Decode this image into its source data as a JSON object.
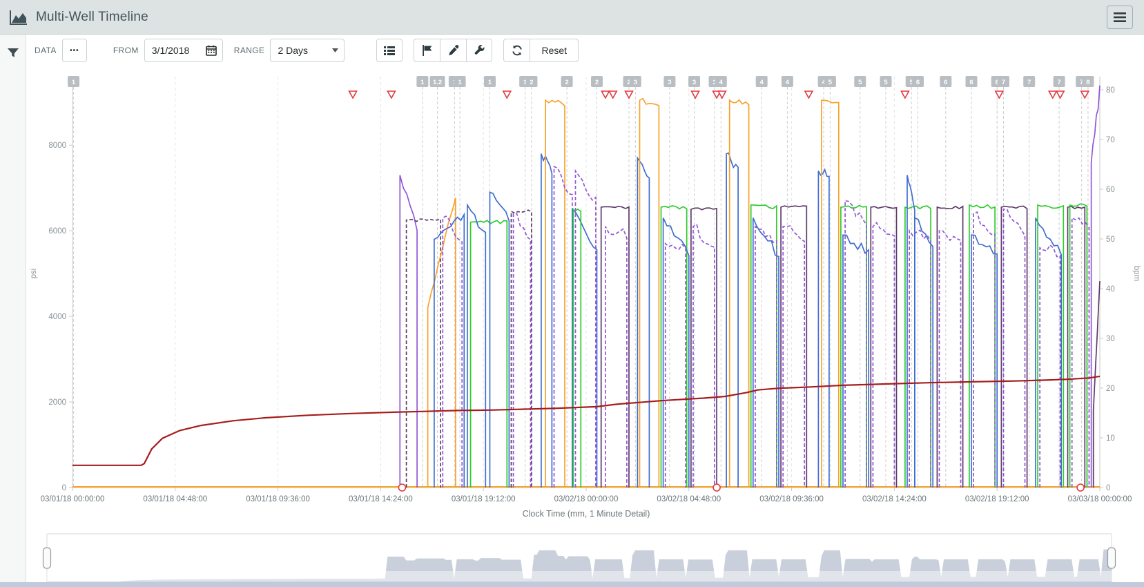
{
  "header": {
    "title": "Multi-Well Timeline"
  },
  "toolbar": {
    "data_label": "DATA",
    "more_label": "•••",
    "from_label": "FROM",
    "date_value": "3/1/2018",
    "range_label": "RANGE",
    "range_value": "2 Days",
    "reset_label": "Reset"
  },
  "colors": {
    "orange": "#f7a229",
    "blue": "#3f6ed0",
    "green": "#2ecc2e",
    "purple": "#5e3a69",
    "violet": "#9257d6",
    "darkred": "#a51d1d",
    "red_marker": "#e2383f",
    "stage_box": "#b9bec3",
    "grid": "#e4e4e4",
    "axis": "#c9c9c9",
    "nav_fill": "#c9d0db"
  },
  "chart_data": {
    "type": "line",
    "title": "",
    "xlabel": "Clock Time (mm, 1 Minute Detail)",
    "ylabel_left": "psi",
    "ylabel_right": "bpm",
    "x_range_hours": [
      0,
      48
    ],
    "x_start": "03/01/18 00:00:00",
    "x_end": "03/03/18 00:00:00",
    "x_ticks": [
      {
        "hour": 0.0,
        "label": "03/01/18 00:00:00"
      },
      {
        "hour": 4.8,
        "label": "03/01/18 04:48:00"
      },
      {
        "hour": 9.6,
        "label": "03/01/18 09:36:00"
      },
      {
        "hour": 14.4,
        "label": "03/01/18 14:24:00"
      },
      {
        "hour": 19.2,
        "label": "03/01/18 19:12:00"
      },
      {
        "hour": 24.0,
        "label": "03/02/18 00:00:00"
      },
      {
        "hour": 28.8,
        "label": "03/02/18 04:48:00"
      },
      {
        "hour": 33.6,
        "label": "03/02/18 09:36:00"
      },
      {
        "hour": 38.4,
        "label": "03/02/18 14:24:00"
      },
      {
        "hour": 43.2,
        "label": "03/02/18 19:12:00"
      },
      {
        "hour": 48.0,
        "label": "03/03/18 00:00:00"
      }
    ],
    "y_left": {
      "min": 0,
      "max": 9600,
      "ticks": [
        0,
        2000,
        4000,
        6000,
        8000
      ]
    },
    "y_right": {
      "min": 0,
      "max": 80,
      "ticks": [
        0,
        10,
        20,
        30,
        40,
        50,
        60,
        70,
        80
      ]
    },
    "stage_markers": [
      {
        "label": "1",
        "hour": 0.05
      },
      {
        "label": "1",
        "hour": 16.35
      },
      {
        "label": "1.2",
        "hour": 17.05
      },
      {
        "label": "1",
        "hour": 17.85
      },
      {
        "label": "1",
        "hour": 18.1
      },
      {
        "label": "1",
        "hour": 19.5
      },
      {
        "label": "1",
        "hour": 21.15
      },
      {
        "label": "2",
        "hour": 21.45
      },
      {
        "label": "2",
        "hour": 23.1
      },
      {
        "label": "2",
        "hour": 24.5
      },
      {
        "label": "2",
        "hour": 26.0
      },
      {
        "label": "3",
        "hour": 26.3
      },
      {
        "label": "3",
        "hour": 27.9
      },
      {
        "label": "3",
        "hour": 29.05
      },
      {
        "label": "3",
        "hour": 30.0
      },
      {
        "label": "4",
        "hour": 30.3
      },
      {
        "label": "4",
        "hour": 32.2
      },
      {
        "label": "4",
        "hour": 33.4
      },
      {
        "label": "4",
        "hour": 35.1
      },
      {
        "label": "5",
        "hour": 35.4
      },
      {
        "label": "5",
        "hour": 36.8
      },
      {
        "label": "5",
        "hour": 38.0
      },
      {
        "label": "5",
        "hour": 39.2
      },
      {
        "label": "6",
        "hour": 39.5
      },
      {
        "label": "6",
        "hour": 40.8
      },
      {
        "label": "6",
        "hour": 42.0
      },
      {
        "label": "6",
        "hour": 43.2
      },
      {
        "label": "7",
        "hour": 43.5
      },
      {
        "label": "7",
        "hour": 44.7
      },
      {
        "label": "7",
        "hour": 46.1
      },
      {
        "label": "7",
        "hour": 47.15
      },
      {
        "label": "8",
        "hour": 47.45
      }
    ],
    "event_triangles_hours": [
      13.1,
      14.9,
      20.3,
      24.9,
      25.25,
      26.0,
      29.1,
      30.1,
      30.35,
      34.4,
      38.9,
      43.3,
      45.8,
      46.15,
      47.3
    ],
    "event_circles_hours": [
      15.4,
      30.1,
      47.1
    ],
    "series": {
      "monitor_pressure_psi": {
        "color_key": "darkred",
        "points": [
          [
            0,
            520
          ],
          [
            3.2,
            520
          ],
          [
            3.35,
            560
          ],
          [
            3.7,
            900
          ],
          [
            4.2,
            1150
          ],
          [
            5,
            1330
          ],
          [
            6,
            1450
          ],
          [
            7.5,
            1560
          ],
          [
            9,
            1630
          ],
          [
            11,
            1690
          ],
          [
            13,
            1730
          ],
          [
            15,
            1760
          ],
          [
            16.5,
            1780
          ],
          [
            18,
            1800
          ],
          [
            19.5,
            1810
          ],
          [
            21,
            1830
          ],
          [
            22.5,
            1850
          ],
          [
            23.5,
            1870
          ],
          [
            24.5,
            1890
          ],
          [
            25.5,
            1950
          ],
          [
            26.5,
            1990
          ],
          [
            27.5,
            2030
          ],
          [
            28.5,
            2060
          ],
          [
            29.5,
            2090
          ],
          [
            30.5,
            2130
          ],
          [
            31.5,
            2220
          ],
          [
            32,
            2280
          ],
          [
            33,
            2320
          ],
          [
            34.5,
            2350
          ],
          [
            36,
            2390
          ],
          [
            38,
            2420
          ],
          [
            40,
            2450
          ],
          [
            42,
            2470
          ],
          [
            44,
            2490
          ],
          [
            45.5,
            2510
          ],
          [
            46.5,
            2530
          ],
          [
            47.5,
            2560
          ],
          [
            48,
            2600
          ]
        ]
      },
      "rate_baseline_bpm": {
        "color_key": "orange",
        "value": 0
      },
      "treatment_segments": [
        {
          "c": "v",
          "s": 15.3,
          "e": 16.1,
          "v0": 7300,
          "v1": 6000
        },
        {
          "c": "p",
          "s": 15.6,
          "e": 17.2,
          "v0": 6250,
          "v1": 6250,
          "d": 1
        },
        {
          "c": "o",
          "s": 16.6,
          "e": 17.9,
          "v0": 4200,
          "v1": 6800
        },
        {
          "c": "b",
          "s": 16.9,
          "e": 18.3,
          "v0": 5800,
          "v1": 6400
        },
        {
          "c": "v",
          "s": 17.3,
          "e": 18.2,
          "v0": 6300,
          "v1": 5800,
          "d": 1
        },
        {
          "c": "g",
          "s": 18.6,
          "e": 20.3,
          "v0": 6200,
          "v1": 6200
        },
        {
          "c": "b",
          "s": 18.45,
          "e": 19.3,
          "v0": 6600,
          "v1": 5900
        },
        {
          "c": "b",
          "s": 19.5,
          "e": 20.4,
          "v0": 6900,
          "v1": 6300
        },
        {
          "c": "p",
          "s": 20.5,
          "e": 21.45,
          "v0": 6450,
          "v1": 6450,
          "d": 1
        },
        {
          "c": "v",
          "s": 20.6,
          "e": 21.4,
          "v0": 6400,
          "v1": 5800,
          "d": 1
        },
        {
          "c": "b",
          "s": 21.9,
          "e": 22.4,
          "v0": 7800,
          "v1": 7400
        },
        {
          "c": "o",
          "s": 22.1,
          "e": 23.0,
          "v0": 9050,
          "v1": 8950
        },
        {
          "c": "v",
          "s": 22.5,
          "e": 23.35,
          "v0": 7500,
          "v1": 6800,
          "d": 1
        },
        {
          "c": "b",
          "s": 23.35,
          "e": 24.5,
          "v0": 6500,
          "v1": 5600
        },
        {
          "c": "g",
          "s": 23.4,
          "e": 23.75,
          "v0": 6500,
          "v1": 6500
        },
        {
          "c": "v",
          "s": 23.5,
          "e": 24.45,
          "v0": 7400,
          "v1": 6700,
          "d": 1
        },
        {
          "c": "p",
          "s": 24.7,
          "e": 26.0,
          "v0": 6550,
          "v1": 6550
        },
        {
          "c": "v",
          "s": 24.9,
          "e": 25.9,
          "v0": 6100,
          "v1": 5900,
          "d": 1
        },
        {
          "c": "b",
          "s": 26.4,
          "e": 26.95,
          "v0": 7700,
          "v1": 7300
        },
        {
          "c": "o",
          "s": 26.5,
          "e": 27.4,
          "v0": 9050,
          "v1": 8950
        },
        {
          "c": "g",
          "s": 27.5,
          "e": 28.7,
          "v0": 6550,
          "v1": 6550
        },
        {
          "c": "b",
          "s": 27.6,
          "e": 28.8,
          "v0": 6300,
          "v1": 5500
        },
        {
          "c": "v",
          "s": 27.7,
          "e": 28.65,
          "v0": 5700,
          "v1": 5600,
          "d": 1
        },
        {
          "c": "p",
          "s": 28.9,
          "e": 30.1,
          "v0": 6500,
          "v1": 6500
        },
        {
          "c": "v",
          "s": 29.0,
          "e": 30.0,
          "v0": 6100,
          "v1": 5600,
          "d": 1
        },
        {
          "c": "b",
          "s": 30.55,
          "e": 31.1,
          "v0": 7800,
          "v1": 7400
        },
        {
          "c": "o",
          "s": 30.7,
          "e": 31.6,
          "v0": 9050,
          "v1": 8950
        },
        {
          "c": "g",
          "s": 31.7,
          "e": 32.9,
          "v0": 6600,
          "v1": 6550
        },
        {
          "c": "b",
          "s": 31.8,
          "e": 33.0,
          "v0": 6300,
          "v1": 5400
        },
        {
          "c": "v",
          "s": 31.9,
          "e": 32.9,
          "v0": 6100,
          "v1": 5700,
          "d": 1
        },
        {
          "c": "p",
          "s": 33.1,
          "e": 34.3,
          "v0": 6550,
          "v1": 6550
        },
        {
          "c": "v",
          "s": 33.2,
          "e": 34.2,
          "v0": 6100,
          "v1": 5800,
          "d": 1
        },
        {
          "c": "b",
          "s": 34.85,
          "e": 35.35,
          "v0": 7400,
          "v1": 7300
        },
        {
          "c": "o",
          "s": 35.0,
          "e": 35.8,
          "v0": 9050,
          "v1": 8950
        },
        {
          "c": "g",
          "s": 35.9,
          "e": 37.1,
          "v0": 6550,
          "v1": 6550
        },
        {
          "c": "b",
          "s": 36.0,
          "e": 37.2,
          "v0": 5900,
          "v1": 5500
        },
        {
          "c": "v",
          "s": 36.1,
          "e": 37.1,
          "v0": 6700,
          "v1": 6100,
          "d": 1
        },
        {
          "c": "p",
          "s": 37.3,
          "e": 38.5,
          "v0": 6550,
          "v1": 6550
        },
        {
          "c": "v",
          "s": 37.4,
          "e": 38.4,
          "v0": 6100,
          "v1": 5900,
          "d": 1
        },
        {
          "c": "g",
          "s": 38.9,
          "e": 40.1,
          "v0": 6550,
          "v1": 6550
        },
        {
          "c": "b",
          "s": 39.0,
          "e": 39.35,
          "v0": 7300,
          "v1": 6500
        },
        {
          "c": "b",
          "s": 39.35,
          "e": 40.2,
          "v0": 6300,
          "v1": 5700
        },
        {
          "c": "v",
          "s": 39.1,
          "e": 40.1,
          "v0": 6000,
          "v1": 5800,
          "d": 1
        },
        {
          "c": "p",
          "s": 40.4,
          "e": 41.6,
          "v0": 6550,
          "v1": 6550
        },
        {
          "c": "v",
          "s": 40.5,
          "e": 41.5,
          "v0": 6000,
          "v1": 5800,
          "d": 1
        },
        {
          "c": "g",
          "s": 41.9,
          "e": 43.1,
          "v0": 6600,
          "v1": 6550
        },
        {
          "c": "b",
          "s": 42.0,
          "e": 43.2,
          "v0": 5900,
          "v1": 5400
        },
        {
          "c": "v",
          "s": 42.1,
          "e": 43.1,
          "v0": 6400,
          "v1": 5900,
          "d": 1
        },
        {
          "c": "p",
          "s": 43.4,
          "e": 44.6,
          "v0": 6550,
          "v1": 6550
        },
        {
          "c": "v",
          "s": 43.5,
          "e": 44.5,
          "v0": 6500,
          "v1": 6000,
          "d": 1
        },
        {
          "c": "b",
          "s": 45.0,
          "e": 46.2,
          "v0": 6300,
          "v1": 5500
        },
        {
          "c": "g",
          "s": 45.1,
          "e": 46.3,
          "v0": 6600,
          "v1": 6550
        },
        {
          "c": "v",
          "s": 45.2,
          "e": 46.15,
          "v0": 5600,
          "v1": 5500,
          "d": 1
        },
        {
          "c": "p",
          "s": 46.5,
          "e": 47.3,
          "v0": 6550,
          "v1": 6550
        },
        {
          "c": "g",
          "s": 46.6,
          "e": 47.4,
          "v0": 6600,
          "v1": 6600
        },
        {
          "c": "v",
          "s": 46.7,
          "e": 47.5,
          "v0": 6300,
          "v1": 6000,
          "d": 1
        },
        {
          "c": "v",
          "s": 47.6,
          "e": 48,
          "v0": 7600,
          "v1": 9300,
          "open": 1
        },
        {
          "c": "p",
          "s": 47.7,
          "e": 48,
          "v0": 1800,
          "v1": 4800,
          "open": 1
        }
      ]
    },
    "legend": "off",
    "grid": "vertical-dashed"
  },
  "navigator": {
    "selected_range_hours": [
      0,
      48
    ]
  }
}
